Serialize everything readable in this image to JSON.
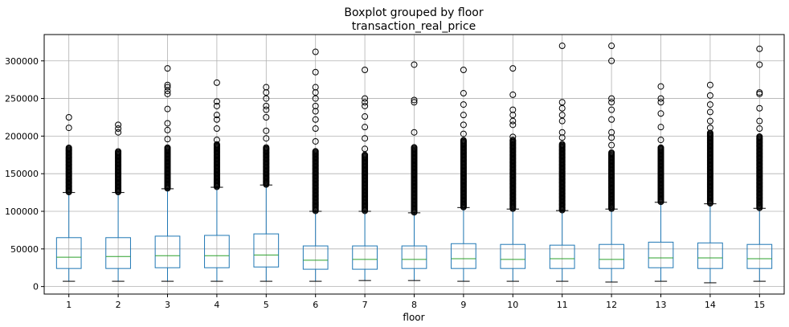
{
  "chart_data": {
    "type": "boxplot",
    "title": "Boxplot grouped by floor",
    "subtitle": "transaction_real_price",
    "xlabel": "floor",
    "ylabel": "",
    "categories": [
      "1",
      "2",
      "3",
      "4",
      "5",
      "6",
      "7",
      "8",
      "9",
      "10",
      "11",
      "12",
      "13",
      "14",
      "15"
    ],
    "ylim": [
      -10000,
      335000
    ],
    "yticks": [
      0,
      50000,
      100000,
      150000,
      200000,
      250000,
      300000
    ],
    "ytick_labels": [
      "0",
      "50000",
      "100000",
      "150000",
      "200000",
      "250000",
      "300000"
    ],
    "grid": true,
    "colors": {
      "box": "#1f77b4",
      "median": "#2ca02c",
      "whisker": "#1f77b4",
      "cap": "#000000",
      "flier": "#000000",
      "grid": "#b0b0b0"
    },
    "boxes": [
      {
        "floor": "1",
        "whislo": 7000,
        "q1": 24000,
        "med": 39000,
        "q3": 65000,
        "whishi": 125000,
        "outlier_band": [
          125000,
          185000
        ],
        "fliers": [
          211000,
          225000
        ]
      },
      {
        "floor": "2",
        "whislo": 7000,
        "q1": 24000,
        "med": 40000,
        "q3": 65000,
        "whishi": 125000,
        "outlier_band": [
          125000,
          180000
        ],
        "fliers": [
          205000,
          210000,
          215000
        ]
      },
      {
        "floor": "3",
        "whislo": 7000,
        "q1": 25000,
        "med": 41000,
        "q3": 67000,
        "whishi": 130000,
        "outlier_band": [
          130000,
          185000
        ],
        "fliers": [
          196000,
          208000,
          217000,
          236000,
          256000,
          260000,
          265000,
          268000,
          290000
        ]
      },
      {
        "floor": "4",
        "whislo": 7000,
        "q1": 25000,
        "med": 41000,
        "q3": 68000,
        "whishi": 132000,
        "outlier_band": [
          132000,
          190000
        ],
        "fliers": [
          195000,
          210000,
          222000,
          228000,
          240000,
          246000,
          271000
        ]
      },
      {
        "floor": "5",
        "whislo": 7000,
        "q1": 26000,
        "med": 42000,
        "q3": 70000,
        "whishi": 135000,
        "outlier_band": [
          135000,
          185000
        ],
        "fliers": [
          197000,
          207000,
          225000,
          235000,
          240000,
          250000,
          258000,
          265000
        ]
      },
      {
        "floor": "6",
        "whislo": 7000,
        "q1": 23000,
        "med": 35000,
        "q3": 54000,
        "whishi": 100000,
        "outlier_band": [
          100000,
          180000
        ],
        "fliers": [
          193000,
          210000,
          222000,
          233000,
          240000,
          250000,
          258000,
          265000,
          285000,
          312000
        ]
      },
      {
        "floor": "7",
        "whislo": 8000,
        "q1": 23000,
        "med": 36000,
        "q3": 54000,
        "whishi": 100000,
        "outlier_band": [
          100000,
          175000
        ],
        "fliers": [
          183000,
          197000,
          212000,
          226000,
          240000,
          245000,
          250000,
          288000
        ]
      },
      {
        "floor": "8",
        "whislo": 8000,
        "q1": 24000,
        "med": 36000,
        "q3": 54000,
        "whishi": 98000,
        "outlier_band": [
          98000,
          185000
        ],
        "fliers": [
          205000,
          245000,
          248000,
          295000
        ]
      },
      {
        "floor": "9",
        "whislo": 7000,
        "q1": 24000,
        "med": 37000,
        "q3": 57000,
        "whishi": 105000,
        "outlier_band": [
          105000,
          195000
        ],
        "fliers": [
          203000,
          215000,
          228000,
          242000,
          257000,
          288000
        ]
      },
      {
        "floor": "10",
        "whislo": 7000,
        "q1": 24000,
        "med": 36000,
        "q3": 56000,
        "whishi": 103000,
        "outlier_band": [
          103000,
          195000
        ],
        "fliers": [
          199000,
          215000,
          220000,
          228000,
          235000,
          255000,
          290000
        ]
      },
      {
        "floor": "11",
        "whislo": 7000,
        "q1": 24000,
        "med": 37000,
        "q3": 55000,
        "whishi": 101000,
        "outlier_band": [
          101000,
          190000
        ],
        "fliers": [
          198000,
          205000,
          220000,
          228000,
          237000,
          245000,
          320000
        ]
      },
      {
        "floor": "12",
        "whislo": 6000,
        "q1": 24000,
        "med": 36000,
        "q3": 56000,
        "whishi": 103000,
        "outlier_band": [
          103000,
          178000
        ],
        "fliers": [
          188000,
          198000,
          205000,
          222000,
          235000,
          245000,
          250000,
          300000,
          320000
        ]
      },
      {
        "floor": "13",
        "whislo": 7000,
        "q1": 25000,
        "med": 38000,
        "q3": 59000,
        "whishi": 112000,
        "outlier_band": [
          112000,
          185000
        ],
        "fliers": [
          195000,
          212000,
          230000,
          245000,
          250000,
          266000
        ]
      },
      {
        "floor": "14",
        "whislo": 5000,
        "q1": 24000,
        "med": 38000,
        "q3": 58000,
        "whishi": 110000,
        "outlier_band": [
          110000,
          205000
        ],
        "fliers": [
          211000,
          220000,
          232000,
          242000,
          254000,
          268000
        ]
      },
      {
        "floor": "15",
        "whislo": 7000,
        "q1": 24000,
        "med": 37000,
        "q3": 56000,
        "whishi": 104000,
        "outlier_band": [
          104000,
          200000
        ],
        "fliers": [
          210000,
          220000,
          237000,
          256000,
          258000,
          295000,
          316000
        ]
      }
    ]
  }
}
